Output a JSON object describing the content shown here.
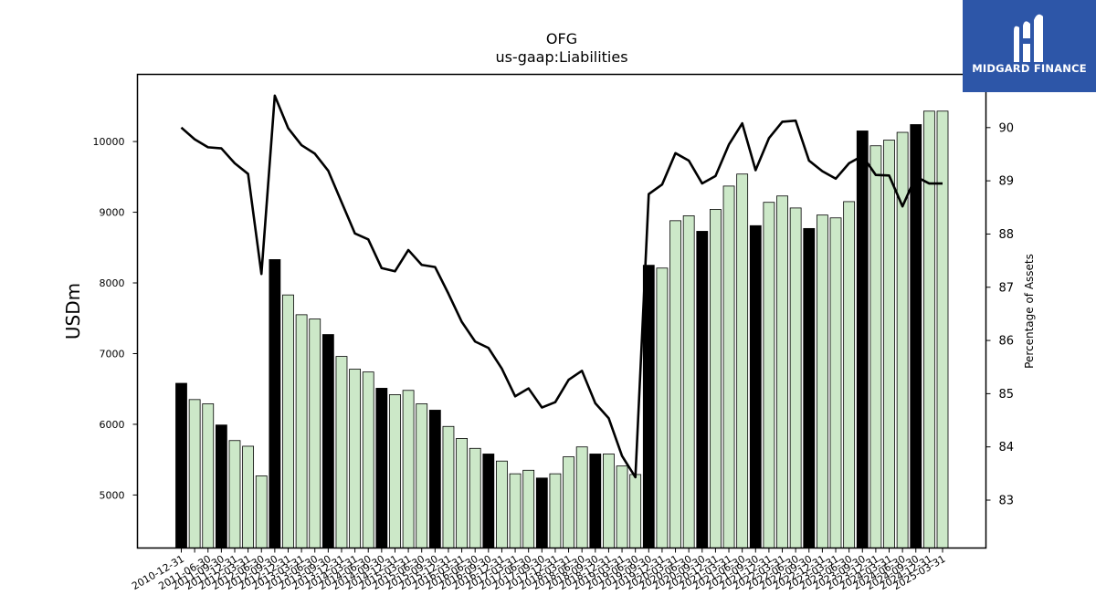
{
  "brand": {
    "name": "MIDGARD FINANCE",
    "bg_color": "#2d56a8"
  },
  "chart_data": {
    "type": "bar",
    "title": "OFG",
    "subtitle": "us-gaap:Liabilities",
    "ylabel": "USDm",
    "y2label": "Percentage of Assets",
    "ylim": [
      4250,
      10950
    ],
    "y2lim": [
      82.1,
      91.0
    ],
    "yticks": [
      5000,
      6000,
      7000,
      8000,
      9000,
      10000
    ],
    "y2ticks": [
      83,
      84,
      85,
      86,
      87,
      88,
      89,
      90
    ],
    "grid": false,
    "legend": "none",
    "bar_color_annual": "#000000",
    "bar_color_quarter": "#cce8c8",
    "line_color": "#000000",
    "categories": [
      "2010-12-31",
      "2011-03-31",
      "2011-06-30",
      "2011-09-30",
      "2011-12-31",
      "2012-03-31",
      "2012-06-30",
      "2012-09-30",
      "2012-12-31",
      "2013-03-31",
      "2013-06-30",
      "2013-09-30",
      "2013-12-31",
      "2014-03-31",
      "2014-06-30",
      "2014-09-30",
      "2014-12-31",
      "2015-03-31",
      "2015-06-30",
      "2015-09-30",
      "2015-12-31",
      "2016-03-31",
      "2016-06-30",
      "2016-09-30",
      "2016-12-31",
      "2017-03-31",
      "2017-06-30",
      "2017-09-30",
      "2017-12-31",
      "2018-03-31",
      "2018-06-30",
      "2018-09-30",
      "2018-12-31",
      "2019-03-31",
      "2019-06-30",
      "2019-09-30",
      "2019-12-31",
      "2020-03-31",
      "2020-06-30",
      "2020-09-30",
      "2020-12-31",
      "2021-03-31",
      "2021-06-30",
      "2021-09-30",
      "2021-12-31",
      "2022-03-31",
      "2022-06-30",
      "2022-09-30",
      "2022-12-31",
      "2023-03-31",
      "2023-06-30",
      "2023-09-30",
      "2023-12-31",
      "2024-03-31",
      "2024-06-30",
      "2024-09-30",
      "2024-12-31",
      "2025-03-31"
    ],
    "visible_tick_labels": [
      "2010-12-31",
      "2011-06-30",
      "2011-09-30",
      "2011-12-31",
      "2012-03-31",
      "2012-06-30",
      "2012-09-30",
      "2012-12-31",
      "2013-03-31",
      "2013-06-30",
      "2013-09-30",
      "2013-12-31",
      "2014-03-31",
      "2014-06-30",
      "2014-09-30",
      "2014-12-31",
      "2015-03-31",
      "2015-06-30",
      "2015-09-30",
      "2015-12-31",
      "2016-03-31",
      "2016-06-30",
      "2016-09-30",
      "2016-12-31",
      "2017-03-31",
      "2017-06-30",
      "2017-09-30",
      "2017-12-31",
      "2018-03-31",
      "2018-06-30",
      "2018-09-30",
      "2018-12-31",
      "2019-03-31",
      "2019-06-30",
      "2019-09-30",
      "2019-12-31",
      "2020-03-31",
      "2020-06-30",
      "2020-09-30",
      "2020-12-31",
      "2021-03-31",
      "2021-06-30",
      "2021-09-30",
      "2021-12-31",
      "2022-03-31",
      "2022-06-30",
      "2022-09-30",
      "2022-12-31",
      "2023-03-31",
      "2023-06-30",
      "2023-09-30",
      "2023-12-31",
      "2024-03-31",
      "2024-06-30",
      "2024-09-30",
      "2024-12-31",
      "2025-03-31"
    ],
    "series": [
      {
        "kind": "bar",
        "axis": "left",
        "values": [
          6580,
          6350,
          6290,
          5990,
          5770,
          5690,
          5270,
          8330,
          7830,
          7550,
          7490,
          7270,
          6960,
          6780,
          6740,
          6510,
          6420,
          6480,
          6290,
          6200,
          5970,
          5800,
          5660,
          5580,
          5480,
          5300,
          5350,
          5240,
          5300,
          5540,
          5680,
          5580,
          5580,
          5410,
          5290,
          8250,
          8210,
          8880,
          8950,
          8730,
          9040,
          9370,
          9540,
          8810,
          9140,
          9230,
          9060,
          8770,
          8960,
          8920,
          9150,
          10150,
          9940,
          10020,
          10130,
          10240,
          10430,
          10430
        ],
        "annual_flags": [
          1,
          0,
          0,
          1,
          0,
          0,
          0,
          1,
          0,
          0,
          0,
          1,
          0,
          0,
          0,
          1,
          0,
          0,
          0,
          1,
          0,
          0,
          0,
          1,
          0,
          0,
          0,
          1,
          0,
          0,
          0,
          1,
          0,
          0,
          0,
          1,
          0,
          0,
          0,
          1,
          0,
          0,
          0,
          1,
          0,
          0,
          0,
          1,
          0,
          0,
          0,
          1,
          0,
          0,
          0,
          1,
          0,
          0
        ]
      },
      {
        "kind": "line",
        "axis": "right",
        "values": [
          90.0,
          89.78,
          89.63,
          89.61,
          89.33,
          89.13,
          87.25,
          90.6,
          89.99,
          89.67,
          89.51,
          89.19,
          88.6,
          88.01,
          87.9,
          87.36,
          87.3,
          87.7,
          87.42,
          87.38,
          86.88,
          86.35,
          85.98,
          85.86,
          85.47,
          84.95,
          85.1,
          84.74,
          84.84,
          85.26,
          85.43,
          84.82,
          84.54,
          83.83,
          83.43,
          88.75,
          88.93,
          89.52,
          89.38,
          88.95,
          89.09,
          89.68,
          90.08,
          89.2,
          89.8,
          90.11,
          90.13,
          89.38,
          89.18,
          89.04,
          89.33,
          89.47,
          89.11,
          89.1,
          88.52,
          89.08,
          88.95,
          88.95
        ]
      }
    ]
  }
}
